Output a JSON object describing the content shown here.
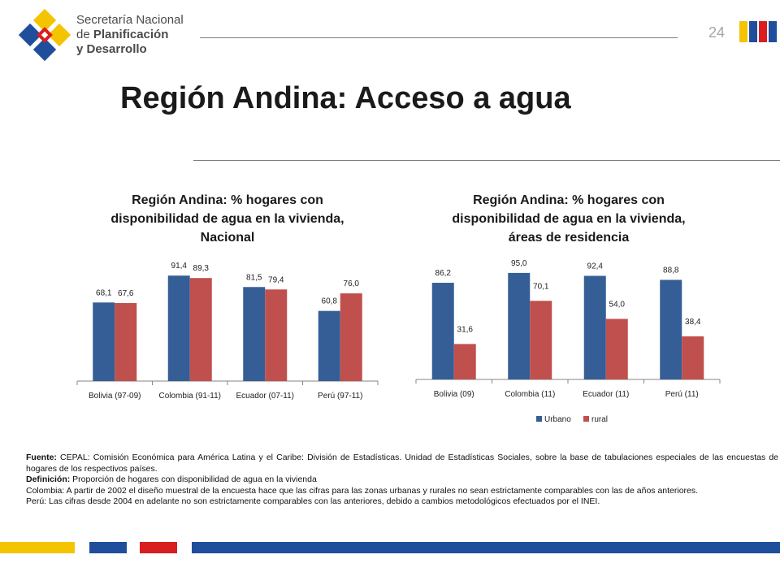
{
  "header": {
    "logo": {
      "line1": "Secretaría Nacional",
      "line2_prefix": "de ",
      "line2_bold": "Planificación",
      "line3": "y Desarrollo"
    },
    "page_number": "24"
  },
  "slide_title": "Región Andina: Acceso a agua",
  "colors": {
    "urbano": "#355e97",
    "rural": "#c0504d",
    "footer_yellow": "#f5c400",
    "footer_blue": "#1f4e9c",
    "footer_red": "#d81e1e",
    "logo_yellow": "#f5c400",
    "logo_blue": "#1f4e9c",
    "logo_red": "#d81e1e"
  },
  "chart_data": [
    {
      "type": "bar",
      "title_lines": [
        "Región Andina: % hogares con",
        "disponibilidad de agua en la vivienda,",
        "Nacional"
      ],
      "categories": [
        "Bolivia (97-09)",
        "Colombia (91-11)",
        "Ecuador (07-11)",
        "Perú (97-11)"
      ],
      "series": [
        {
          "values": [
            68.1,
            91.4,
            81.5,
            60.8
          ],
          "labels": [
            "68,1",
            "91,4",
            "81,5",
            "60,8"
          ]
        },
        {
          "values": [
            67.6,
            89.3,
            79.4,
            76.0
          ],
          "labels": [
            "67,6",
            "89,3",
            "79,4",
            "76,0"
          ]
        }
      ],
      "ylim": [
        0,
        100
      ],
      "grid": false,
      "legend": "none"
    },
    {
      "type": "bar",
      "title_lines": [
        "Región Andina: % hogares con",
        "disponibilidad de agua en la vivienda,",
        "áreas de residencia"
      ],
      "categories": [
        "Bolivia (09)",
        "Colombia (11)",
        "Ecuador (11)",
        "Perú (11)"
      ],
      "series": [
        {
          "name": "Urbano",
          "values": [
            86.2,
            95.0,
            92.4,
            88.8
          ],
          "labels": [
            "86,2",
            "95,0",
            "92,4",
            "88,8"
          ]
        },
        {
          "name": "rural",
          "values": [
            31.6,
            70.1,
            54.0,
            38.4
          ],
          "labels": [
            "31,6",
            "70,1",
            "54,0",
            "38,4"
          ]
        }
      ],
      "ylim": [
        0,
        100
      ],
      "grid": false,
      "legend": "bottom"
    }
  ],
  "notes": {
    "fuente_label": "Fuente:",
    "fuente_text": " CEPAL: Comisión Económica para América Latina y el Caribe: División de Estadísticas. Unidad de Estadísticas Sociales, sobre la base de tabulaciones especiales de las encuestas de hogares de los respectivos países.",
    "definicion_label": "Definición:",
    "definicion_text": " Proporción de hogares con disponibilidad de agua en la vivienda",
    "colombia": "Colombia: A partir de 2002 el diseño muestral de la encuesta hace que las cifras para las zonas urbanas y rurales no sean estrictamente comparables con las de años anteriores.",
    "peru": "Perú: Las cifras desde 2004 en adelante no son estrictamente comparables con las anteriores, debido a cambios metodológicos efectuados por el INEI."
  }
}
